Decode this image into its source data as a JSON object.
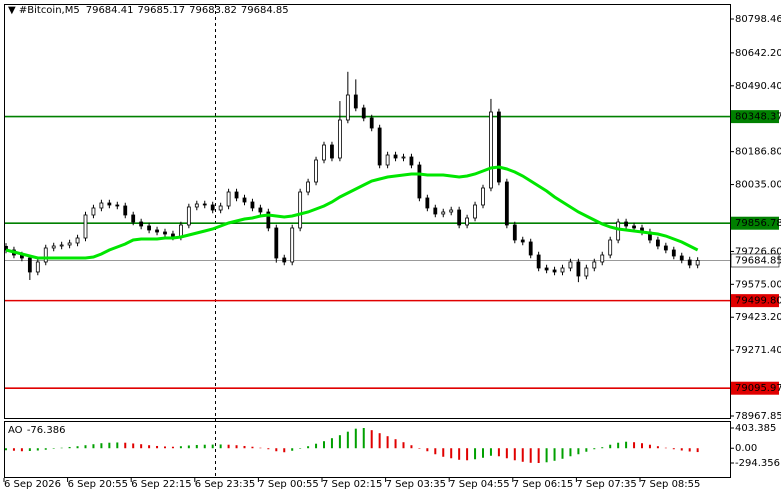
{
  "chart_data": {
    "type": "candlestick",
    "title": "#Bitcoin,M5",
    "quote": [
      79684.41,
      79685.17,
      79683.82,
      79684.85
    ],
    "categories": [
      "6 Sep 2026",
      null,
      null,
      null,
      null,
      null,
      null,
      null,
      "6 Sep 20:55",
      null,
      null,
      null,
      null,
      null,
      null,
      null,
      "6 Sep 22:15",
      null,
      null,
      null,
      null,
      null,
      null,
      null,
      "6 Sep 23:35",
      null,
      null,
      null,
      null,
      null,
      null,
      null,
      "7 Sep 00:55",
      null,
      null,
      null,
      null,
      null,
      null,
      null,
      "7 Sep 02:15",
      null,
      null,
      null,
      null,
      null,
      null,
      null,
      "7 Sep 03:35",
      null,
      null,
      null,
      null,
      null,
      null,
      null,
      "7 Sep 04:55",
      null,
      null,
      null,
      null,
      null,
      null,
      null,
      "7 Sep 06:15",
      null,
      null,
      null,
      null,
      null,
      null,
      null,
      "7 Sep 07:35",
      null,
      null,
      null,
      null,
      null,
      null,
      null,
      "7 Sep 08:55",
      null,
      null,
      null,
      null,
      null,
      null,
      null
    ],
    "open": [
      79750.0,
      79733.3,
      79710.2,
      79696.4,
      79631.9,
      79678.0,
      79742.5,
      79751.7,
      79756.3,
      79765.6,
      79788.6,
      79894.7,
      79927.0,
      79950.0,
      79940.8,
      79936.2,
      79894.7,
      79862.4,
      79844.0,
      79825.5,
      79816.3,
      79807.1,
      79793.2,
      79848.6,
      79931.6,
      79945.4,
      79940.8,
      79917.7,
      79936.2,
      80000.7,
      79973.1,
      79954.6,
      79927.0,
      79908.5,
      79834.8,
      79696.4,
      79678.0,
      79834.8,
      80000.7,
      80046.8,
      80148.3,
      80217.4,
      80157.5,
      80332.7,
      80448.0,
      80388.1,
      80341.9,
      80295.8,
      80125.2,
      80171.3,
      80157.5,
      80162.1,
      80125.2,
      79973.1,
      79927.0,
      79899.3,
      79908.5,
      79917.7,
      79848.6,
      79880.8,
      79940.8,
      80019.2,
      80369.6,
      80046.8,
      79848.6,
      79779.4,
      79770.2,
      79710.2,
      79650.3,
      79641.1,
      79631.9,
      79650.3,
      79678.0,
      79613.4,
      79650.3,
      79678.0,
      79710.2,
      79779.4,
      79862.4,
      79844.0,
      79834.8,
      79816.3,
      79779.4,
      79751.7,
      79733.3,
      79705.6,
      79687.2,
      79664.1
    ],
    "high": [
      79765.0,
      79748.3,
      79725.2,
      79711.4,
      79693.0,
      79757.5,
      79766.7,
      79771.3,
      79780.6,
      79803.6,
      79909.7,
      79942.0,
      79965.0,
      79965.0,
      79955.8,
      79951.2,
      79909.7,
      79877.4,
      79859.0,
      79840.5,
      79831.3,
      79822.1,
      79863.6,
      79946.6,
      79960.4,
      79960.4,
      79955.8,
      79951.2,
      80015.7,
      80015.7,
      79988.1,
      79969.6,
      79942.0,
      79923.5,
      79849.8,
      79711.4,
      79849.8,
      80015.7,
      80061.8,
      80163.3,
      80232.4,
      80232.4,
      80420.0,
      80555.0,
      80520.0,
      80403.1,
      80356.9,
      80310.8,
      80186.3,
      80186.3,
      80177.1,
      80177.1,
      80140.2,
      79988.1,
      79942.0,
      79923.5,
      79932.7,
      79932.7,
      79895.8,
      79955.8,
      80034.2,
      80430.0,
      80384.6,
      80061.8,
      79863.6,
      79794.4,
      79785.2,
      79725.2,
      79665.3,
      79656.1,
      79665.3,
      79693.0,
      79693.0,
      79665.3,
      79693.0,
      79725.2,
      79794.4,
      79877.4,
      79877.4,
      79859.0,
      79849.8,
      79831.3,
      79794.4,
      79766.7,
      79748.3,
      79720.6,
      79702.2,
      79699.9
    ],
    "low": [
      79718.3,
      79695.2,
      79681.4,
      79595.0,
      79616.9,
      79663.0,
      79727.5,
      79736.7,
      79741.3,
      79750.6,
      79773.6,
      79879.7,
      79912.0,
      79925.8,
      79921.2,
      79879.7,
      79847.4,
      79829.0,
      79810.5,
      79801.3,
      79792.1,
      79778.2,
      79778.2,
      79833.6,
      79916.6,
      79925.8,
      79902.7,
      79902.7,
      79921.2,
      79958.1,
      79939.6,
      79912.0,
      79893.5,
      79819.8,
      79675.0,
      79663.0,
      79663.0,
      79819.8,
      79985.7,
      80031.8,
      80133.3,
      80142.5,
      80142.5,
      80317.7,
      80373.1,
      80326.9,
      80280.8,
      80110.2,
      80110.2,
      80142.5,
      80142.5,
      80110.2,
      79958.1,
      79912.0,
      79884.3,
      79884.3,
      79893.5,
      79833.6,
      79833.6,
      79865.8,
      79925.8,
      80004.2,
      80031.8,
      79833.6,
      79764.4,
      79755.2,
      79695.2,
      79635.3,
      79626.1,
      79616.9,
      79616.9,
      79635.3,
      79585.0,
      79598.4,
      79635.3,
      79663.0,
      79695.2,
      79764.4,
      79829.0,
      79819.8,
      79801.3,
      79764.4,
      79736.7,
      79718.3,
      79690.6,
      79672.2,
      79649.1,
      79649.1
    ],
    "close": [
      79733.3,
      79710.2,
      79696.4,
      79631.9,
      79678.0,
      79742.5,
      79751.7,
      79756.3,
      79765.6,
      79788.6,
      79894.7,
      79927.0,
      79950.0,
      79940.8,
      79936.2,
      79894.7,
      79862.4,
      79844.0,
      79825.5,
      79816.3,
      79807.1,
      79793.2,
      79848.6,
      79931.6,
      79945.4,
      79940.8,
      79917.7,
      79936.2,
      80000.7,
      79973.1,
      79954.6,
      79927.0,
      79908.5,
      79834.8,
      79696.4,
      79678.0,
      79834.8,
      80000.7,
      80046.8,
      80148.3,
      80217.4,
      80157.5,
      80332.7,
      80448.0,
      80388.1,
      80341.9,
      80295.8,
      80125.2,
      80171.3,
      80157.5,
      80162.1,
      80125.2,
      79973.1,
      79927.0,
      79899.3,
      79908.5,
      79917.7,
      79848.6,
      79880.8,
      79940.8,
      80019.2,
      80369.6,
      80046.8,
      79848.6,
      79779.4,
      79770.2,
      79710.2,
      79650.3,
      79641.1,
      79631.9,
      79650.3,
      79678.0,
      79613.4,
      79650.3,
      79678.0,
      79710.2,
      79779.4,
      79862.4,
      79844.0,
      79834.8,
      79816.3,
      79779.4,
      79751.7,
      79733.3,
      79705.6,
      79687.2,
      79664.1,
      79684.85
    ],
    "color": "#000000",
    "ma": {
      "color": "#00e600",
      "values": [
        79733.3,
        79724.1,
        79714.9,
        79705.6,
        79696.4,
        79696.4,
        79696.4,
        79696.4,
        79696.4,
        79696.4,
        79696.4,
        79701.0,
        79714.9,
        79733.3,
        79747.1,
        79761.0,
        79779.4,
        79784.0,
        79784.0,
        79784.0,
        79788.6,
        79788.6,
        79793.2,
        79802.4,
        79811.6,
        79820.9,
        79830.1,
        79844.0,
        79857.8,
        79867.0,
        79876.2,
        79880.8,
        79890.1,
        79894.7,
        79890.1,
        79885.5,
        79890.1,
        79899.3,
        79908.5,
        79922.4,
        79936.2,
        79954.6,
        79977.7,
        79996.1,
        80014.6,
        80033.0,
        80051.5,
        80060.7,
        80069.9,
        80074.5,
        80079.2,
        80083.8,
        80083.8,
        80079.2,
        80079.2,
        80079.2,
        80074.5,
        80069.9,
        80074.5,
        80083.8,
        80097.6,
        80111.4,
        80116.0,
        80106.8,
        80092.9,
        80074.5,
        80051.5,
        80028.4,
        80005.3,
        79977.7,
        79954.6,
        79931.6,
        79908.5,
        79890.1,
        79871.6,
        79853.2,
        79839.4,
        79830.1,
        79825.5,
        79820.9,
        79816.3,
        79811.6,
        79807.1,
        79797.8,
        79784.0,
        79770.2,
        79751.7,
        79733.3
      ]
    },
    "levels": [
      {
        "value": 80348.37,
        "color": "#008000"
      },
      {
        "value": 79856.78,
        "color": "#008000"
      },
      {
        "value": 79499.8,
        "label": "79499.80",
        "color": "#e00000"
      },
      {
        "value": 79095.97,
        "color": "#e00000"
      }
    ],
    "ylim": [
      78958.6,
      80867.6
    ],
    "yticks": [
      80798.46,
      {
        "value": 80642.2,
        "label": "80642.20"
      },
      {
        "value": 80490.4,
        "label": "80490.40"
      },
      {
        "value": 80186.8,
        "label": "80186.80"
      },
      {
        "value": 80035,
        "label": "80035.00"
      },
      {
        "value": 79726.6,
        "label": "79726.60"
      },
      {
        "value": 79575,
        "label": "79575.00"
      },
      {
        "value": 79423.2,
        "label": "79423.20"
      },
      {
        "value": 79271.4,
        "label": "79271.40"
      },
      78967.85
    ],
    "indicator": {
      "type": "bar",
      "name": "AO",
      "up_color": "#00a000",
      "down_color": "#e00000",
      "values": [
        -40,
        -50,
        -60,
        -55,
        -45,
        -30,
        -10,
        10,
        25,
        40,
        60,
        80,
        100,
        110,
        115,
        110,
        95,
        80,
        60,
        45,
        35,
        30,
        40,
        55,
        65,
        70,
        72,
        75,
        70,
        60,
        45,
        30,
        10,
        -20,
        -60,
        -80,
        -50,
        -10,
        40,
        90,
        140,
        200,
        260,
        330,
        390,
        403.385,
        360,
        300,
        240,
        180,
        120,
        60,
        0,
        -60,
        -120,
        -170,
        -200,
        -230,
        -240,
        -220,
        -190,
        -150,
        -160,
        -200,
        -240,
        -270,
        -290,
        -294.356,
        -280,
        -250,
        -210,
        -160,
        -120,
        -70,
        -20,
        20,
        70,
        110,
        130,
        120,
        100,
        70,
        40,
        10,
        -20,
        -45,
        -65,
        -76.386
      ],
      "ylim": [
        -593.4,
        483.1
      ],
      "yticks": [
        403.385,
        {
          "value": 0,
          "label": "0.00"
        },
        -294.356
      ]
    }
  }
}
